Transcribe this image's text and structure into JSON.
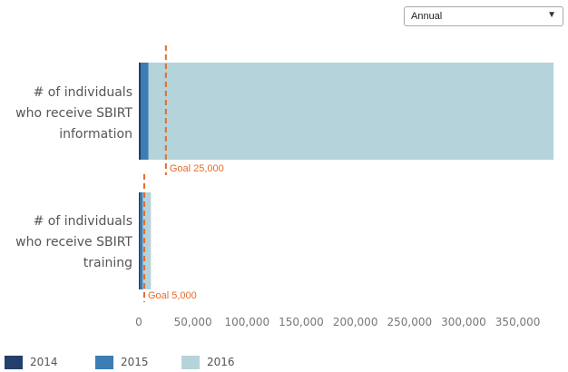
{
  "controls": {
    "period": "Annual"
  },
  "chart_data": {
    "type": "bar",
    "orientation": "horizontal",
    "stacked": true,
    "categories": [
      [
        "# of individuals",
        "who receive SBIRT",
        "information"
      ],
      [
        "# of individuals",
        "who receive SBIRT",
        "training"
      ]
    ],
    "series": [
      {
        "name": "2014",
        "color": "#233f6b",
        "values": [
          2000,
          1200
        ]
      },
      {
        "name": "2015",
        "color": "#3c7db3",
        "values": [
          7000,
          2500
        ]
      },
      {
        "name": "2016",
        "color": "#b5d3db",
        "values": [
          374000,
          7500
        ]
      }
    ],
    "goals": [
      {
        "label": "Goal 25,000",
        "value": 25000,
        "category_index": 0
      },
      {
        "label": "Goal 5,000",
        "value": 5000,
        "category_index": 1
      }
    ],
    "goal_color": "#e46c2a",
    "xlim": [
      0,
      383000
    ],
    "xticks": [
      0,
      50000,
      100000,
      150000,
      200000,
      250000,
      300000,
      350000
    ],
    "xtick_labels": [
      "0",
      "50,000",
      "100,000",
      "150,000",
      "200,000",
      "250,000",
      "300,000",
      "350,000"
    ],
    "legend_position": "bottom-left",
    "grid": false
  }
}
